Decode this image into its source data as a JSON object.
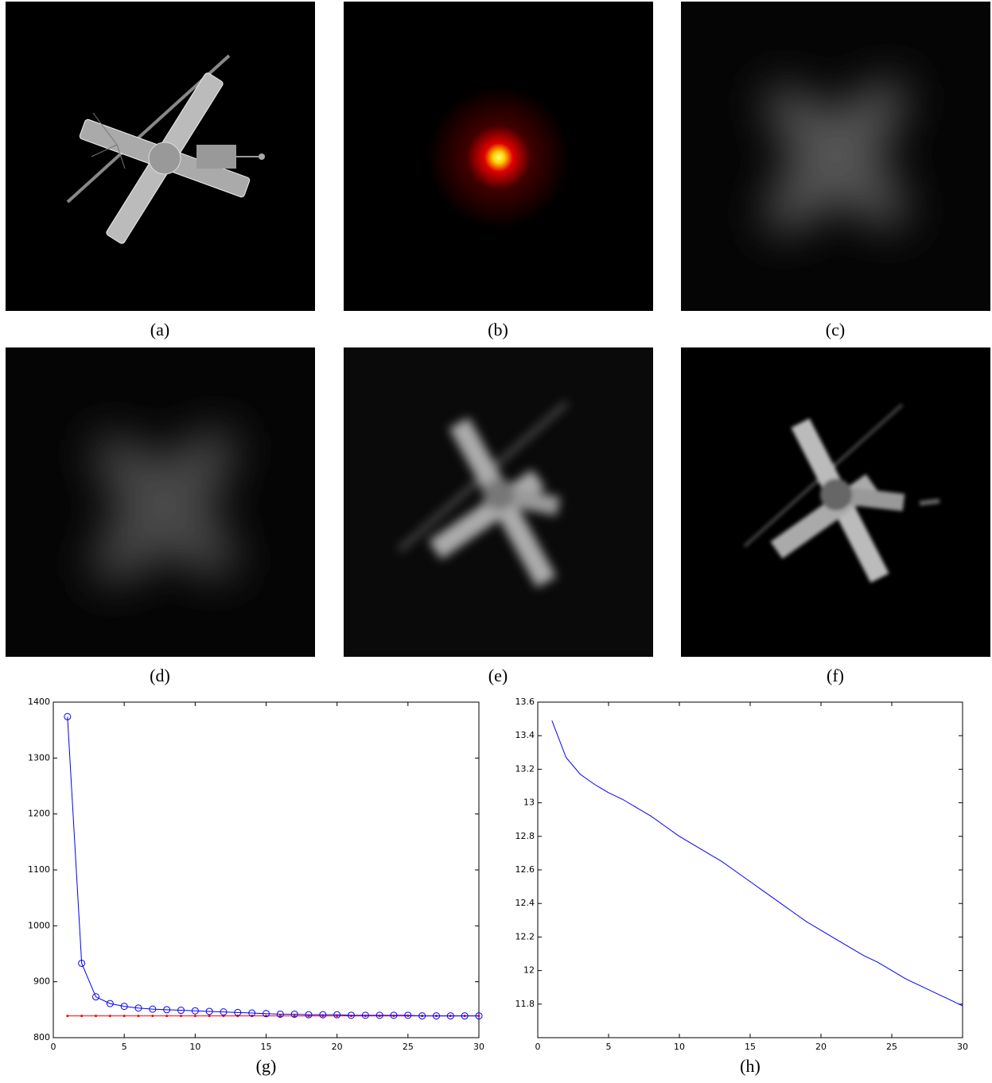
{
  "panels": [
    {
      "caption": "(a)"
    },
    {
      "caption": "(b)"
    },
    {
      "caption": "(c)"
    },
    {
      "caption": "(d)"
    },
    {
      "caption": "(e)"
    },
    {
      "caption": "(f)"
    }
  ],
  "chart_data": [
    {
      "type": "line",
      "caption": "(g)",
      "x": [
        1,
        2,
        3,
        4,
        5,
        6,
        7,
        8,
        9,
        10,
        11,
        12,
        13,
        14,
        15,
        16,
        17,
        18,
        19,
        20,
        21,
        22,
        23,
        24,
        25,
        26,
        27,
        28,
        29,
        30
      ],
      "series": [
        {
          "color": "#0000ff",
          "marker": "circle",
          "values": [
            1374,
            933,
            873,
            861,
            856,
            853,
            851,
            850,
            849,
            848,
            847,
            846,
            845,
            844,
            843,
            842,
            842,
            841,
            841,
            841,
            840,
            840,
            840,
            840,
            840,
            839,
            839,
            839,
            839,
            839
          ]
        },
        {
          "color": "#ff0000",
          "marker": "dot",
          "values": [
            839,
            839,
            839,
            839,
            839,
            839,
            839,
            839,
            839,
            839,
            839,
            839,
            839,
            839,
            839,
            839,
            839,
            839,
            839,
            839,
            839,
            839,
            839,
            839,
            839,
            839,
            839,
            839,
            839,
            839
          ]
        }
      ],
      "xlim": [
        0,
        30
      ],
      "xticks": [
        0,
        5,
        10,
        15,
        20,
        25,
        30
      ],
      "ylim": [
        800,
        1400
      ],
      "yticks": [
        800,
        900,
        1000,
        1100,
        1200,
        1300,
        1400
      ]
    },
    {
      "type": "line",
      "caption": "(h)",
      "x": [
        1,
        2,
        3,
        4,
        5,
        6,
        7,
        8,
        9,
        10,
        11,
        12,
        13,
        14,
        15,
        16,
        17,
        18,
        19,
        20,
        21,
        22,
        23,
        24,
        25,
        26,
        27,
        28,
        29,
        30
      ],
      "series": [
        {
          "color": "#0000ff",
          "marker": "none",
          "values": [
            13.49,
            13.27,
            13.17,
            13.11,
            13.06,
            13.02,
            12.97,
            12.92,
            12.86,
            12.8,
            12.75,
            12.7,
            12.65,
            12.59,
            12.53,
            12.47,
            12.41,
            12.35,
            12.29,
            12.24,
            12.19,
            12.14,
            12.09,
            12.05,
            12.0,
            11.95,
            11.91,
            11.87,
            11.83,
            11.79
          ]
        }
      ],
      "xlim": [
        0,
        30
      ],
      "xticks": [
        0,
        5,
        10,
        15,
        20,
        25,
        30
      ],
      "ylim": [
        11.6,
        13.6
      ],
      "yticks": [
        11.8,
        12,
        12.2,
        12.4,
        12.6,
        12.8,
        13,
        13.2,
        13.4,
        13.6
      ]
    }
  ]
}
